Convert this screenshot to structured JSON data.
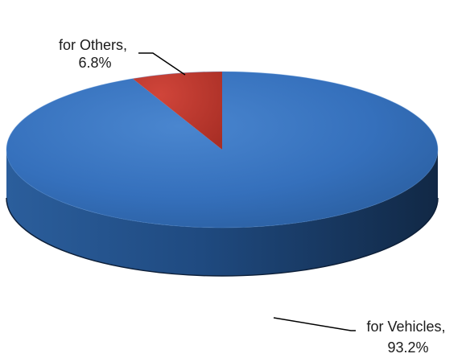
{
  "chart_data": {
    "type": "pie",
    "style": "3d",
    "slices": [
      {
        "name": "for Others",
        "value": 6.8,
        "label_line1": "for Others,",
        "label_line2": "6.8%",
        "color": "#C0392B"
      },
      {
        "name": "for Vehicles",
        "value": 93.2,
        "label_line1": "for Vehicles,",
        "label_line2": "93.2%",
        "color": "#2F6DB5"
      }
    ]
  }
}
